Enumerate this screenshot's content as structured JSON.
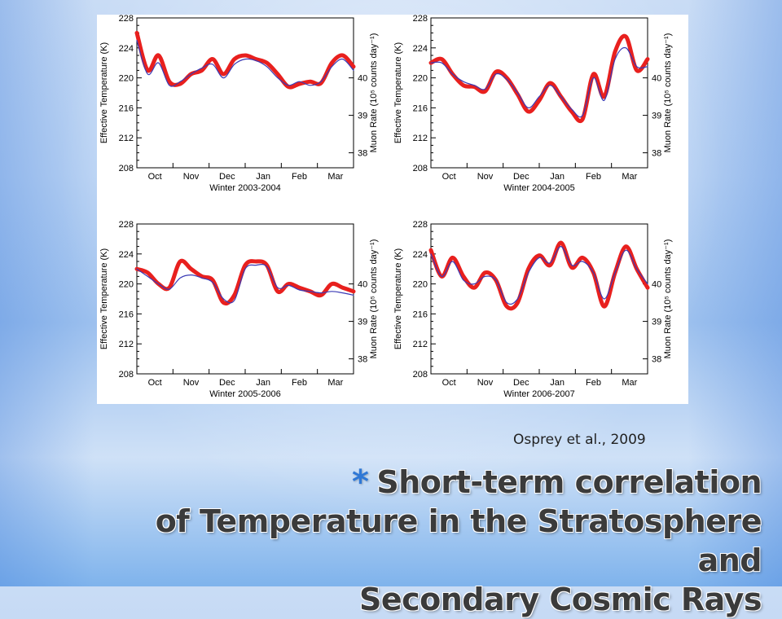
{
  "slide": {
    "citation": "Osprey et al., 2009",
    "title_bullet": "*",
    "title_lines": [
      "Short-term correlation",
      "of Temperature in the Stratosphere and",
      "Secondary Cosmic Rays"
    ]
  },
  "chart_data": [
    {
      "type": "line",
      "xlabel": "Winter 2003-2004",
      "ylabel": "Effective Temperature (K)",
      "y2label": "Muon Rate (10⁵ counts day⁻¹)",
      "x_ticks": [
        "Oct",
        "Nov",
        "Dec",
        "Jan",
        "Feb",
        "Mar"
      ],
      "ylim": [
        208,
        228
      ],
      "y_ticks": [
        208,
        212,
        216,
        220,
        224,
        228
      ],
      "y2_ticks": [
        38,
        39,
        40
      ],
      "x": [
        0,
        0.3,
        0.6,
        0.9,
        1.2,
        1.5,
        1.8,
        2.1,
        2.4,
        2.7,
        3.0,
        3.3,
        3.6,
        3.9,
        4.2,
        4.5,
        4.8,
        5.1,
        5.4,
        5.7,
        6.0
      ],
      "series": [
        {
          "color": "#e8201e",
          "values": [
            226,
            221,
            223,
            219.5,
            219.2,
            220.5,
            221,
            222.5,
            220.5,
            222.5,
            223,
            222.5,
            222,
            220.5,
            218.8,
            219.2,
            219.5,
            219.3,
            222,
            223,
            221.5
          ]
        },
        {
          "color": "#3a3ab5",
          "values": [
            225,
            220.5,
            222,
            219,
            219.5,
            220.5,
            221.3,
            221.8,
            220,
            221.8,
            222.5,
            222.3,
            221.5,
            220,
            219,
            219.5,
            219,
            219.5,
            221.5,
            222.5,
            221
          ]
        }
      ]
    },
    {
      "type": "line",
      "xlabel": "Winter 2004-2005",
      "ylabel": "Effective Temperature (K)",
      "y2label": "Muon Rate (10⁵ counts day⁻¹)",
      "x_ticks": [
        "Oct",
        "Nov",
        "Dec",
        "Jan",
        "Feb",
        "Mar"
      ],
      "ylim": [
        208,
        228
      ],
      "y_ticks": [
        208,
        212,
        216,
        220,
        224,
        228
      ],
      "y2_ticks": [
        38,
        39,
        40
      ],
      "x": [
        0,
        0.3,
        0.6,
        0.9,
        1.2,
        1.5,
        1.8,
        2.1,
        2.4,
        2.7,
        3.0,
        3.3,
        3.6,
        3.9,
        4.2,
        4.5,
        4.8,
        5.1,
        5.4,
        5.7,
        6.0
      ],
      "series": [
        {
          "color": "#e8201e",
          "values": [
            222,
            222.5,
            220.5,
            219,
            218.8,
            218.2,
            220.8,
            220,
            217.8,
            215.5,
            217,
            219.3,
            217.5,
            215.5,
            214.5,
            220.5,
            217.5,
            223.5,
            225.5,
            221,
            222.5
          ]
        },
        {
          "color": "#3a3ab5",
          "values": [
            222,
            222,
            220.5,
            219.5,
            219,
            218.5,
            220.5,
            219.8,
            218,
            216,
            217.5,
            219,
            217.5,
            215.8,
            215,
            220,
            217,
            222.5,
            224,
            221.5,
            221.5
          ]
        }
      ]
    },
    {
      "type": "line",
      "xlabel": "Winter 2005-2006",
      "ylabel": "Effective Temperature (K)",
      "y2label": "Muon Rate (10⁵ counts day⁻¹)",
      "x_ticks": [
        "Oct",
        "Nov",
        "Dec",
        "Jan",
        "Feb",
        "Mar"
      ],
      "ylim": [
        208,
        228
      ],
      "y_ticks": [
        208,
        212,
        216,
        220,
        224,
        228
      ],
      "y2_ticks": [
        38,
        39,
        40
      ],
      "x": [
        0,
        0.3,
        0.6,
        0.9,
        1.2,
        1.5,
        1.8,
        2.1,
        2.4,
        2.7,
        3.0,
        3.3,
        3.6,
        3.9,
        4.2,
        4.5,
        4.8,
        5.1,
        5.4,
        5.7,
        6.0
      ],
      "series": [
        {
          "color": "#e8201e",
          "values": [
            222,
            221.5,
            220,
            219.5,
            223,
            222,
            221,
            220.5,
            217.5,
            218.5,
            222.5,
            223,
            222.5,
            219,
            220,
            219.5,
            219,
            218.5,
            220,
            219.5,
            219
          ]
        },
        {
          "color": "#3a3ab5",
          "values": [
            222,
            221,
            220,
            219.3,
            220.8,
            221.2,
            220.8,
            220.2,
            218,
            217.8,
            222,
            222.5,
            222.3,
            219.5,
            219.8,
            219.2,
            219,
            218.8,
            219,
            218.8,
            218.5
          ]
        }
      ]
    },
    {
      "type": "line",
      "xlabel": "Winter 2006-2007",
      "ylabel": "Effective Temperature (K)",
      "y2label": "Muon Rate (10⁵ counts day⁻¹)",
      "x_ticks": [
        "Oct",
        "Nov",
        "Dec",
        "Jan",
        "Feb",
        "Mar"
      ],
      "ylim": [
        208,
        228
      ],
      "y_ticks": [
        208,
        212,
        216,
        220,
        224,
        228
      ],
      "y2_ticks": [
        38,
        39,
        40
      ],
      "x": [
        0,
        0.3,
        0.6,
        0.9,
        1.2,
        1.5,
        1.8,
        2.1,
        2.4,
        2.7,
        3.0,
        3.3,
        3.6,
        3.9,
        4.2,
        4.5,
        4.8,
        5.1,
        5.4,
        5.7,
        6.0
      ],
      "series": [
        {
          "color": "#e8201e",
          "values": [
            224.5,
            221,
            223.5,
            221,
            219.5,
            221.5,
            220.5,
            217,
            217.5,
            222,
            223.8,
            222.5,
            225.5,
            222.2,
            223.5,
            221.5,
            217,
            221.5,
            225,
            222,
            219.5
          ]
        },
        {
          "color": "#3a3ab5",
          "values": [
            224,
            221,
            223,
            220.5,
            220,
            221,
            220.5,
            217.5,
            218,
            221.5,
            223.5,
            222.8,
            225,
            222.5,
            223,
            221.5,
            218,
            221.5,
            224.5,
            222,
            220
          ]
        }
      ]
    }
  ]
}
